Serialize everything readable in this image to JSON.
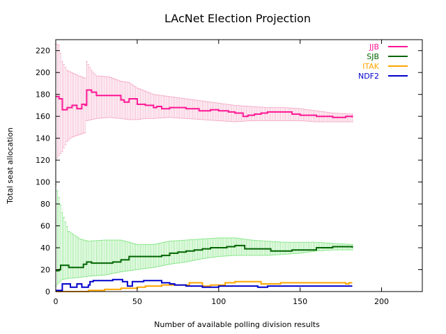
{
  "chart_data": {
    "type": "line",
    "title": "LAcNet Election Projection",
    "xlabel": "Number of available polling division results",
    "ylabel": "Total seat allocation",
    "xlim": [
      0,
      225
    ],
    "ylim": [
      0,
      230
    ],
    "xticks": [
      0,
      50,
      100,
      150,
      200
    ],
    "yticks": [
      0,
      20,
      40,
      60,
      80,
      100,
      120,
      140,
      160,
      180,
      200,
      220
    ],
    "grid": false,
    "legend_position": "top-right",
    "series": [
      {
        "name": "JJB",
        "color": "#ff1493",
        "error_color": "#f4a6c4",
        "points": [
          [
            0,
            178
          ],
          [
            2,
            176
          ],
          [
            4,
            166
          ],
          [
            7,
            168
          ],
          [
            10,
            170
          ],
          [
            13,
            167
          ],
          [
            16,
            171
          ],
          [
            18,
            170
          ],
          [
            19,
            184
          ],
          [
            22,
            182
          ],
          [
            25,
            179
          ],
          [
            33,
            179
          ],
          [
            40,
            175
          ],
          [
            42,
            173
          ],
          [
            45,
            176
          ],
          [
            50,
            171
          ],
          [
            55,
            170
          ],
          [
            60,
            168
          ],
          [
            62,
            169
          ],
          [
            65,
            167
          ],
          [
            70,
            168
          ],
          [
            80,
            167
          ],
          [
            88,
            165
          ],
          [
            95,
            166
          ],
          [
            100,
            165
          ],
          [
            106,
            164
          ],
          [
            110,
            163
          ],
          [
            115,
            160
          ],
          [
            118,
            161
          ],
          [
            122,
            162
          ],
          [
            126,
            163
          ],
          [
            130,
            164
          ],
          [
            140,
            164
          ],
          [
            145,
            162
          ],
          [
            150,
            161
          ],
          [
            160,
            160
          ],
          [
            170,
            159
          ],
          [
            178,
            160
          ],
          [
            182,
            159
          ]
        ],
        "error_low": [
          [
            0,
            120
          ],
          [
            2,
            124
          ],
          [
            4,
            128
          ],
          [
            7,
            137
          ],
          [
            10,
            141
          ],
          [
            14,
            143
          ],
          [
            18,
            145
          ],
          [
            19,
            156
          ],
          [
            22,
            157
          ],
          [
            25,
            158
          ],
          [
            33,
            159
          ],
          [
            40,
            158
          ],
          [
            45,
            157
          ],
          [
            50,
            157
          ],
          [
            55,
            158
          ],
          [
            60,
            158
          ],
          [
            70,
            159
          ],
          [
            80,
            158
          ],
          [
            90,
            157
          ],
          [
            100,
            156
          ],
          [
            110,
            155
          ],
          [
            120,
            156
          ],
          [
            130,
            156
          ],
          [
            140,
            156
          ],
          [
            150,
            156
          ],
          [
            160,
            155
          ],
          [
            170,
            155
          ],
          [
            182,
            155
          ]
        ],
        "error_high": [
          [
            0,
            226
          ],
          [
            2,
            225
          ],
          [
            4,
            210
          ],
          [
            7,
            202
          ],
          [
            10,
            200
          ],
          [
            14,
            197
          ],
          [
            18,
            195
          ],
          [
            19,
            210
          ],
          [
            22,
            202
          ],
          [
            25,
            197
          ],
          [
            33,
            196
          ],
          [
            40,
            192
          ],
          [
            45,
            191
          ],
          [
            50,
            186
          ],
          [
            55,
            183
          ],
          [
            60,
            180
          ],
          [
            70,
            178
          ],
          [
            80,
            176
          ],
          [
            90,
            174
          ],
          [
            100,
            172
          ],
          [
            110,
            170
          ],
          [
            120,
            169
          ],
          [
            130,
            168
          ],
          [
            140,
            168
          ],
          [
            150,
            167
          ],
          [
            160,
            165
          ],
          [
            170,
            163
          ],
          [
            182,
            162
          ]
        ]
      },
      {
        "name": "SJB",
        "color": "#006400",
        "error_color": "#7fe57f",
        "points": [
          [
            0,
            19
          ],
          [
            2,
            20
          ],
          [
            3,
            24
          ],
          [
            5,
            24
          ],
          [
            8,
            22
          ],
          [
            15,
            22
          ],
          [
            17,
            25
          ],
          [
            19,
            27
          ],
          [
            22,
            26
          ],
          [
            25,
            26
          ],
          [
            35,
            27
          ],
          [
            40,
            29
          ],
          [
            45,
            32
          ],
          [
            60,
            32
          ],
          [
            65,
            33
          ],
          [
            70,
            35
          ],
          [
            75,
            36
          ],
          [
            80,
            37
          ],
          [
            85,
            38
          ],
          [
            90,
            39
          ],
          [
            95,
            40
          ],
          [
            100,
            40
          ],
          [
            105,
            41
          ],
          [
            110,
            42
          ],
          [
            115,
            42
          ],
          [
            116,
            39
          ],
          [
            130,
            39
          ],
          [
            132,
            37
          ],
          [
            140,
            37
          ],
          [
            145,
            38
          ],
          [
            150,
            38
          ],
          [
            160,
            40
          ],
          [
            170,
            41
          ],
          [
            180,
            41
          ],
          [
            182,
            40
          ]
        ],
        "error_low": [
          [
            0,
            5
          ],
          [
            2,
            8
          ],
          [
            4,
            11
          ],
          [
            8,
            12
          ],
          [
            15,
            13
          ],
          [
            20,
            14
          ],
          [
            30,
            15
          ],
          [
            40,
            18
          ],
          [
            50,
            20
          ],
          [
            60,
            22
          ],
          [
            70,
            25
          ],
          [
            80,
            27
          ],
          [
            90,
            30
          ],
          [
            100,
            32
          ],
          [
            110,
            33
          ],
          [
            120,
            33
          ],
          [
            130,
            33
          ],
          [
            140,
            34
          ],
          [
            150,
            35
          ],
          [
            160,
            37
          ],
          [
            170,
            38
          ],
          [
            182,
            38
          ]
        ],
        "error_high": [
          [
            0,
            98
          ],
          [
            2,
            86
          ],
          [
            4,
            72
          ],
          [
            8,
            55
          ],
          [
            15,
            48
          ],
          [
            20,
            46
          ],
          [
            30,
            47
          ],
          [
            40,
            47
          ],
          [
            50,
            43
          ],
          [
            60,
            43
          ],
          [
            70,
            46
          ],
          [
            80,
            47
          ],
          [
            90,
            48
          ],
          [
            100,
            49
          ],
          [
            110,
            49
          ],
          [
            120,
            47
          ],
          [
            130,
            46
          ],
          [
            140,
            45
          ],
          [
            150,
            45
          ],
          [
            160,
            45
          ],
          [
            170,
            44
          ],
          [
            182,
            43
          ]
        ]
      },
      {
        "name": "ITAK",
        "color": "#ffa500",
        "points": [
          [
            0,
            0
          ],
          [
            15,
            0
          ],
          [
            20,
            1
          ],
          [
            30,
            2
          ],
          [
            40,
            3
          ],
          [
            50,
            4
          ],
          [
            55,
            5
          ],
          [
            60,
            5
          ],
          [
            65,
            6
          ],
          [
            70,
            6
          ],
          [
            80,
            6
          ],
          [
            82,
            8
          ],
          [
            85,
            8
          ],
          [
            90,
            5
          ],
          [
            95,
            6
          ],
          [
            100,
            6
          ],
          [
            104,
            8
          ],
          [
            110,
            9
          ],
          [
            125,
            9
          ],
          [
            126,
            7
          ],
          [
            135,
            7
          ],
          [
            138,
            8
          ],
          [
            140,
            8
          ],
          [
            175,
            8
          ],
          [
            178,
            7
          ],
          [
            180,
            8
          ],
          [
            182,
            8
          ]
        ]
      },
      {
        "name": "NDF2",
        "color": "#0000cc",
        "points": [
          [
            0,
            1
          ],
          [
            2,
            1
          ],
          [
            4,
            7
          ],
          [
            8,
            7
          ],
          [
            9,
            4
          ],
          [
            11,
            4
          ],
          [
            13,
            7
          ],
          [
            15,
            7
          ],
          [
            16,
            4
          ],
          [
            18,
            4
          ],
          [
            20,
            6
          ],
          [
            21,
            9
          ],
          [
            23,
            10
          ],
          [
            28,
            10
          ],
          [
            35,
            11
          ],
          [
            40,
            11
          ],
          [
            41,
            9
          ],
          [
            44,
            5
          ],
          [
            46,
            5
          ],
          [
            47,
            9
          ],
          [
            48,
            9
          ],
          [
            52,
            9
          ],
          [
            54,
            10
          ],
          [
            60,
            10
          ],
          [
            65,
            8
          ],
          [
            70,
            7
          ],
          [
            73,
            6
          ],
          [
            80,
            5
          ],
          [
            90,
            4
          ],
          [
            100,
            5
          ],
          [
            110,
            5
          ],
          [
            120,
            5
          ],
          [
            124,
            4
          ],
          [
            130,
            5
          ],
          [
            140,
            5
          ],
          [
            150,
            5
          ],
          [
            160,
            5
          ],
          [
            170,
            5
          ],
          [
            182,
            5
          ]
        ]
      }
    ]
  }
}
